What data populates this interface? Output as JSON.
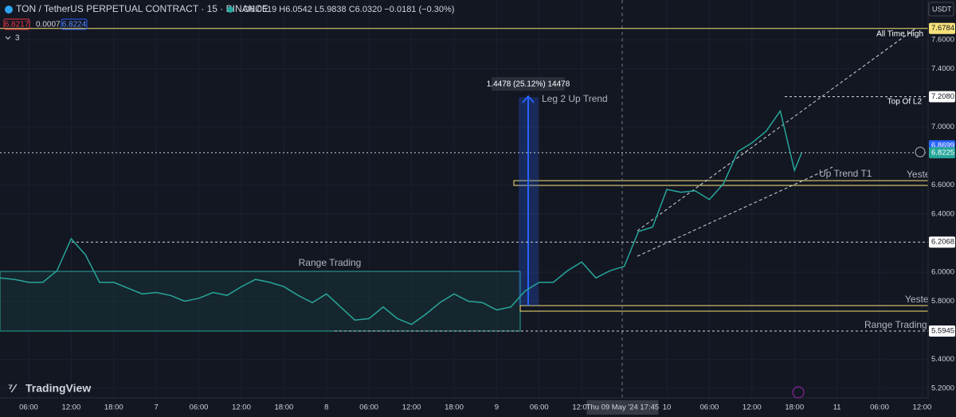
{
  "header": {
    "symbol": "TON / TetherUS PERPETUAL CONTRACT · 15 · BINANCE",
    "ohlc": "O6.0519 H6.0542 L5.9838 C6.0320 −0.0181 (−0.30%)",
    "bid": "6.8217",
    "spread": "0.0007",
    "ask": "6.8224",
    "indicators": "3",
    "currency": "USDT",
    "brand": "TradingView"
  },
  "chart_data": {
    "type": "line",
    "color": "#26a69a",
    "x": [
      -4,
      -2,
      0,
      2,
      4,
      6,
      8,
      10,
      12,
      14,
      16,
      18,
      20,
      22,
      24,
      26,
      28,
      30,
      32,
      34,
      36,
      38,
      40,
      42,
      44,
      46,
      48,
      50,
      52,
      54,
      56,
      58,
      60,
      62,
      64,
      66,
      68,
      70,
      72,
      74,
      76,
      78,
      80,
      82,
      84,
      86,
      88,
      90,
      92,
      94,
      96,
      98,
      100,
      102,
      104,
      106,
      108,
      109
    ],
    "series": [
      {
        "color": "#26a69a",
        "values": [
          5.96,
          5.95,
          5.93,
          5.93,
          6.01,
          6.23,
          6.12,
          5.93,
          5.93,
          5.89,
          5.85,
          5.86,
          5.84,
          5.8,
          5.82,
          5.86,
          5.84,
          5.9,
          5.95,
          5.93,
          5.9,
          5.84,
          5.79,
          5.85,
          5.76,
          5.67,
          5.68,
          5.76,
          5.68,
          5.64,
          5.71,
          5.79,
          5.85,
          5.8,
          5.79,
          5.74,
          5.76,
          5.87,
          5.93,
          5.93,
          6.01,
          6.07,
          5.96,
          6.01,
          6.04,
          6.28,
          6.31,
          6.57,
          6.55,
          6.56,
          6.5,
          6.61,
          6.83,
          6.89,
          6.97,
          7.11,
          6.7,
          6.82
        ]
      }
    ],
    "xlim": [
      -4.04,
      126.85
    ],
    "xticks": [
      {
        "value": 0,
        "label": "06:00"
      },
      {
        "value": 6,
        "label": "12:00"
      },
      {
        "value": 12,
        "label": "18:00"
      },
      {
        "value": 18,
        "label": "7"
      },
      {
        "value": 24,
        "label": "06:00"
      },
      {
        "value": 30,
        "label": "12:00"
      },
      {
        "value": 36,
        "label": "18:00"
      },
      {
        "value": 42,
        "label": "8"
      },
      {
        "value": 48,
        "label": "06:00"
      },
      {
        "value": 54,
        "label": "12:00"
      },
      {
        "value": 60,
        "label": "18:00"
      },
      {
        "value": 66,
        "label": "9"
      },
      {
        "value": 72,
        "label": "06:00"
      },
      {
        "value": 78,
        "label": "12:00"
      },
      {
        "value": 90,
        "label": "10"
      },
      {
        "value": 96,
        "label": "06:00"
      },
      {
        "value": 102,
        "label": "12:00"
      },
      {
        "value": 108,
        "label": "18:00"
      },
      {
        "value": 114,
        "label": "11"
      },
      {
        "value": 120,
        "label": "06:00"
      },
      {
        "value": 126,
        "label": "12:00"
      }
    ],
    "cursor": {
      "value": 83.75,
      "label": "Thu 09 May '24  17:45"
    },
    "ylim": [
      5.134,
      7.874
    ],
    "yticks": [
      {
        "value": 7.6,
        "label": "7.6000"
      },
      {
        "value": 7.4,
        "label": "7.4000"
      },
      {
        "value": 7.0,
        "label": "7.0000"
      },
      {
        "value": 6.6,
        "label": "6.6000"
      },
      {
        "value": 6.4,
        "label": "6.4000"
      },
      {
        "value": 6.0,
        "label": "6.0000"
      },
      {
        "value": 5.8,
        "label": "5.8000"
      },
      {
        "value": 5.4,
        "label": "5.4000"
      },
      {
        "value": 5.2,
        "label": "5.2000"
      }
    ],
    "grid": true,
    "levels": [
      {
        "value": 7.6784,
        "label": "7.6784",
        "color": "#f7e27a",
        "text_color": "#131722"
      },
      {
        "value": 7.208,
        "label": "7.2080",
        "color": "#ffffff",
        "text_color": "#131722"
      },
      {
        "value": 6.8699,
        "label": "6.8699",
        "color": "#2962ff",
        "text_color": "#ffffff"
      },
      {
        "value": 6.8225,
        "label": "6.8225",
        "color": "#26a69a",
        "text_color": "#ffffff"
      },
      {
        "value": 6.2068,
        "label": "6.2068",
        "color": "#ffffff",
        "text_color": "#131722"
      },
      {
        "value": 5.5945,
        "label": "5.5945",
        "color": "#ffffff",
        "text_color": "#131722"
      }
    ],
    "annotations": {
      "ath": "All Time High",
      "top": "Top Of L2",
      "range": "Range Trading",
      "leg": "Leg 2 Up Trend",
      "trend": "Up Trend T1",
      "yest1": "Yeste",
      "yest2": "Yeste",
      "range_low": "Range Trading Lo",
      "measure": "1.4478 (25.12%) 14478"
    }
  }
}
